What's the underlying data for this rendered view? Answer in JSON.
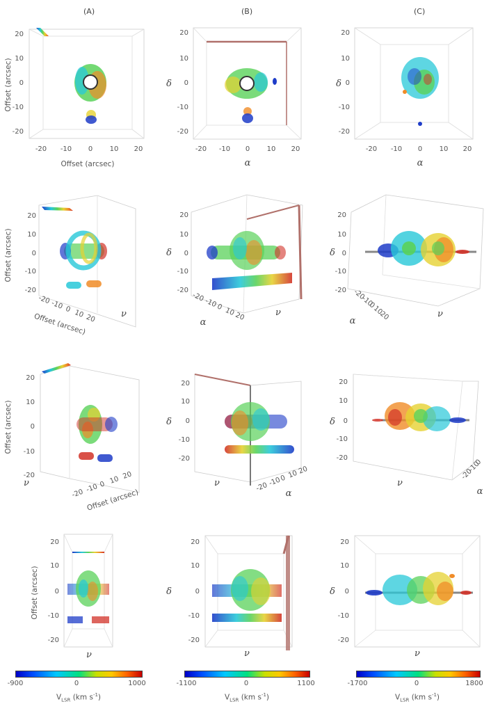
{
  "columns": [
    "(A)",
    "(B)",
    "(C)"
  ],
  "offset_label": "Offset (arcsec)",
  "greek": {
    "alpha": "α",
    "delta": "δ",
    "nu": "ν"
  },
  "ticks": {
    "t20n": "-20",
    "t10n": "-10",
    "t0": "0",
    "t10": "10",
    "t20": "20"
  },
  "colorbars": [
    {
      "min": "-900",
      "mid": "0",
      "max": "1000",
      "label_v": "V",
      "label_sub": "LSR",
      "label_unit": " (km s",
      "label_sup": "-1",
      "label_end": ")"
    },
    {
      "min": "-1100",
      "mid": "0",
      "max": "1100",
      "label_v": "V",
      "label_sub": "LSR",
      "label_unit": " (km s",
      "label_sup": "-1",
      "label_end": ")"
    },
    {
      "min": "-1700",
      "mid": "0",
      "max": "1800",
      "label_v": "V",
      "label_sub": "LSR",
      "label_unit": " (km s",
      "label_sup": "-1",
      "label_end": ")"
    }
  ],
  "colors": {
    "blue": "#1e3cc8",
    "cyan": "#28c8d8",
    "green": "#5ad25a",
    "yellow": "#e6d232",
    "orange": "#f08c28",
    "red": "#d23228",
    "axis": "#bbbbbb"
  }
}
